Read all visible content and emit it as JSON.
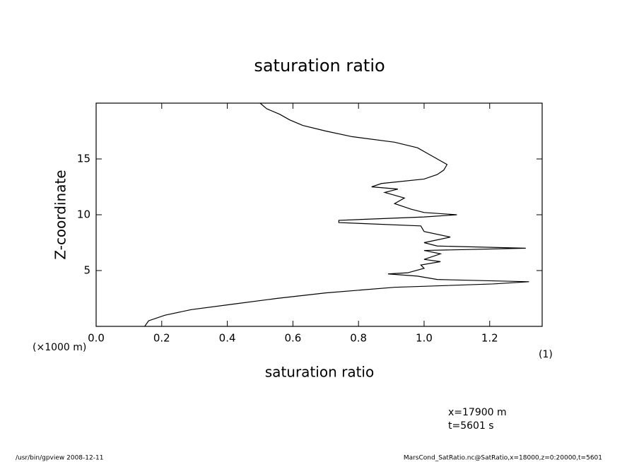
{
  "chart_data": {
    "type": "line",
    "title": "saturation ratio",
    "x_label": "saturation ratio",
    "y_label": "Z-coordinate",
    "y_unit": "(×1000 m)",
    "x_unit": "(1)",
    "annotations": [
      "x=17900 m",
      "t=5601 s"
    ],
    "footer_left": "/usr/bin/gpview  2008-12-11",
    "footer_right": "MarsCond_SatRatio.nc@SatRatio,x=18000,z=0:20000,t=5601",
    "color": "#000000",
    "y": [
      0,
      0.5,
      1,
      1.5,
      2,
      2.5,
      3,
      3.5,
      3.8,
      4.0,
      4.2,
      4.5,
      4.7,
      4.8,
      5.2,
      5.5,
      5.8,
      6.0,
      6.5,
      6.8,
      7.0,
      7.2,
      7.5,
      8.0,
      8.5,
      9.0,
      9.3,
      9.5,
      9.8,
      10.0,
      10.2,
      10.5,
      11,
      11.5,
      12,
      12.3,
      12.5,
      12.8,
      13.2,
      13.6,
      14,
      14.5,
      15,
      15.5,
      16,
      16.5,
      17,
      17.5,
      18,
      18.5,
      19,
      19.5,
      20
    ],
    "values": [
      0.148,
      0.16,
      0.21,
      0.29,
      0.42,
      0.55,
      0.7,
      0.91,
      1.21,
      1.32,
      1.04,
      0.98,
      0.89,
      0.95,
      1.0,
      0.99,
      1.05,
      1.0,
      1.05,
      1.0,
      1.31,
      1.04,
      1.0,
      1.08,
      1.0,
      0.99,
      0.74,
      0.74,
      1.0,
      1.1,
      1.0,
      0.96,
      0.91,
      0.94,
      0.88,
      0.92,
      0.84,
      0.87,
      1.0,
      1.04,
      1.06,
      1.07,
      1.04,
      1.01,
      0.98,
      0.91,
      0.78,
      0.7,
      0.63,
      0.59,
      0.56,
      0.52,
      0.5
    ],
    "xlim": [
      0,
      1.36
    ],
    "ylim": [
      0,
      20
    ],
    "xticks": [
      {
        "value": 0,
        "label": "0.0"
      },
      0.2,
      0.4,
      0.6,
      0.8,
      {
        "value": 1,
        "label": "1.0"
      },
      1.2
    ],
    "yticks": [
      5,
      10,
      15
    ]
  }
}
